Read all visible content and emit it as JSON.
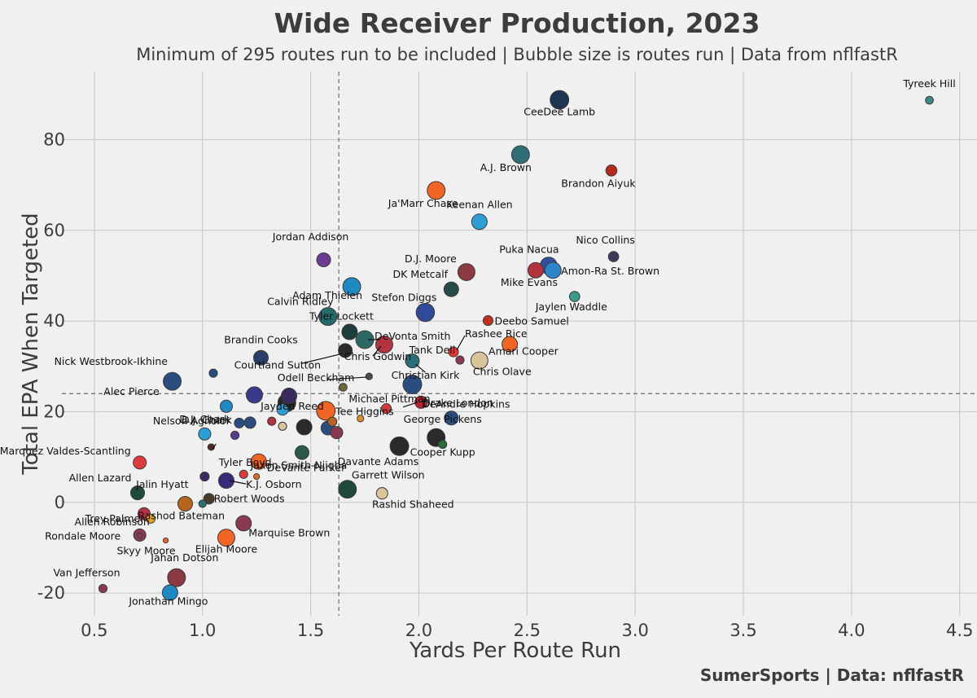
{
  "chart_data": {
    "type": "scatter",
    "title": "Wide Receiver Production, 2023",
    "subtitle": "Minimum of 295 routes run to be included | Bubble size is routes run | Data from nflfastR",
    "xlabel": "Yards Per Route Run",
    "ylabel": "Total EPA When Targeted",
    "credit": "SumerSports | Data: nflfastR",
    "xlim": [
      0.35,
      4.58
    ],
    "ylim": [
      -25,
      95
    ],
    "x_ticks": [
      0.5,
      1.0,
      1.5,
      2.0,
      2.5,
      3.0,
      3.5,
      4.0,
      4.5
    ],
    "x_tick_labels": [
      "0.5",
      "1.0",
      "1.5",
      "2.0",
      "2.5",
      "3.0",
      "3.5",
      "4.0",
      "4.5"
    ],
    "y_ticks": [
      -20,
      0,
      20,
      40,
      60,
      80
    ],
    "y_tick_labels": [
      "-20",
      "0",
      "20",
      "40",
      "60",
      "80"
    ],
    "grid": true,
    "reference_lines": {
      "x": 1.63,
      "y": 24
    },
    "points": [
      {
        "label": "Tyreek Hill",
        "x": 4.36,
        "y": 88.7,
        "routes": 370,
        "color": "#3b8a85"
      },
      {
        "label": "CeeDee Lamb",
        "x": 2.65,
        "y": 88.8,
        "routes": 640,
        "color": "#1e3550"
      },
      {
        "label": "A.J. Brown",
        "x": 2.47,
        "y": 76.7,
        "routes": 620,
        "color": "#2f6e76"
      },
      {
        "label": "Brandon Aiyuk",
        "x": 2.89,
        "y": 73.2,
        "routes": 450,
        "color": "#b5291f"
      },
      {
        "label": "Ja'Marr Chase",
        "x": 2.08,
        "y": 68.8,
        "routes": 620,
        "color": "#f26522"
      },
      {
        "label": "Keenan Allen",
        "x": 2.28,
        "y": 61.9,
        "routes": 560,
        "color": "#2b9fd6"
      },
      {
        "label": "Nico Collins",
        "x": 2.9,
        "y": 54.2,
        "routes": 430,
        "color": "#3b3a5e"
      },
      {
        "label": "Puka Nacua",
        "x": 2.6,
        "y": 52.2,
        "routes": 600,
        "color": "#2f4f9a"
      },
      {
        "label": "Amon-Ra St. Brown",
        "x": 2.62,
        "y": 51.2,
        "routes": 580,
        "color": "#2a86c9"
      },
      {
        "label": "Mike Evans",
        "x": 2.54,
        "y": 51.2,
        "routes": 560,
        "color": "#b3323d"
      },
      {
        "label": "D.J. Moore",
        "x": 2.22,
        "y": 50.8,
        "routes": 600,
        "color": "#8a3a40"
      },
      {
        "label": "Jordan Addison",
        "x": 1.56,
        "y": 53.5,
        "routes": 520,
        "color": "#6b3d91"
      },
      {
        "label": "Adam Thielen",
        "x": 1.69,
        "y": 47.6,
        "routes": 620,
        "color": "#1f8ac2"
      },
      {
        "label": "DK Metcalf",
        "x": 2.15,
        "y": 47.0,
        "routes": 540,
        "color": "#254b47"
      },
      {
        "label": "Jaylen Waddle",
        "x": 2.72,
        "y": 45.4,
        "routes": 430,
        "color": "#3b9a8a"
      },
      {
        "label": "Stefon Diggs",
        "x": 2.03,
        "y": 41.9,
        "routes": 630,
        "color": "#2f4a9a"
      },
      {
        "label": "Calvin Ridley",
        "x": 1.58,
        "y": 41.0,
        "routes": 620,
        "color": "#236b6b"
      },
      {
        "label": "Deebo Samuel",
        "x": 2.32,
        "y": 40.1,
        "routes": 420,
        "color": "#c0301f"
      },
      {
        "label": "Tyler Lockett",
        "x": 1.68,
        "y": 37.6,
        "routes": 560,
        "color": "#1d3e3a"
      },
      {
        "label": "DeVonta Smith",
        "x": 1.75,
        "y": 35.9,
        "routes": 620,
        "color": "#2e6866"
      },
      {
        "label": "Chris Godwin",
        "x": 1.84,
        "y": 34.8,
        "routes": 600,
        "color": "#b33340"
      },
      {
        "label": "Rashee Rice",
        "x": 2.16,
        "y": 33.2,
        "routes": 420,
        "color": "#e03a2f"
      },
      {
        "label": "Amari Cooper",
        "x": 2.42,
        "y": 34.9,
        "routes": 560,
        "color": "#f26522"
      },
      {
        "label": "Courtland Sutton",
        "x": 1.66,
        "y": 33.5,
        "routes": 520,
        "color": "#2a2a2a"
      },
      {
        "label": "Brandin Cooks",
        "x": 1.27,
        "y": 31.9,
        "routes": 540,
        "color": "#2a3f66"
      },
      {
        "label": "Tank Dell",
        "x": 2.19,
        "y": 31.4,
        "routes": 380,
        "color": "#8a3a50"
      },
      {
        "label": "Chris Olave",
        "x": 2.28,
        "y": 31.3,
        "routes": 600,
        "color": "#d9c39a"
      },
      {
        "label": "Christian Kirk",
        "x": 1.97,
        "y": 31.2,
        "routes": 520,
        "color": "#2a6e7a"
      },
      {
        "label": "Nick Westbrook-Ikhine",
        "x": 1.05,
        "y": 28.5,
        "routes": 380,
        "color": "#2a4d80"
      },
      {
        "label": "Odell Beckham",
        "x": 1.77,
        "y": 27.8,
        "routes": 340,
        "color": "#4a4a4a"
      },
      {
        "label": "Alec Pierce",
        "x": 0.86,
        "y": 26.7,
        "routes": 620,
        "color": "#2a4d80"
      },
      {
        "label": "Michael Pittman",
        "x": 1.97,
        "y": 26.0,
        "routes": 640,
        "color": "#2a4d80"
      },
      {
        "label": "",
        "x": 1.65,
        "y": 25.4,
        "routes": 370,
        "color": "#6b6b3a"
      },
      {
        "label": "",
        "x": 1.24,
        "y": 23.7,
        "routes": 580,
        "color": "#3a3a8a"
      },
      {
        "label": "Jayden Reed",
        "x": 1.4,
        "y": 23.5,
        "routes": 560,
        "color": "#3a2a5e"
      },
      {
        "label": "",
        "x": 1.39,
        "y": 22.0,
        "routes": 620,
        "color": "#2a2a2a"
      },
      {
        "label": "Drake London",
        "x": 2.01,
        "y": 22.1,
        "routes": 480,
        "color": "#c0202f"
      },
      {
        "label": "D.J. Chark",
        "x": 1.11,
        "y": 21.2,
        "routes": 480,
        "color": "#1f8ac2"
      },
      {
        "label": "Tee Higgins",
        "x": 1.57,
        "y": 20.2,
        "routes": 640,
        "color": "#f26522"
      },
      {
        "label": "",
        "x": 1.37,
        "y": 20.5,
        "routes": 460,
        "color": "#2a9fd6"
      },
      {
        "label": "",
        "x": 1.85,
        "y": 20.7,
        "routes": 420,
        "color": "#d43a3a"
      },
      {
        "label": "DeAndre Hopkins",
        "x": 2.15,
        "y": 18.6,
        "routes": 520,
        "color": "#2a4d80"
      },
      {
        "label": "",
        "x": 1.73,
        "y": 18.5,
        "routes": 340,
        "color": "#e08a2a"
      },
      {
        "label": "",
        "x": 1.6,
        "y": 17.8,
        "routes": 400,
        "color": "#b5651d"
      },
      {
        "label": "",
        "x": 1.32,
        "y": 17.9,
        "routes": 380,
        "color": "#b33340"
      },
      {
        "label": "",
        "x": 1.17,
        "y": 17.5,
        "routes": 420,
        "color": "#2a4d80"
      },
      {
        "label": "",
        "x": 1.22,
        "y": 17.6,
        "routes": 460,
        "color": "#2a4d80"
      },
      {
        "label": "",
        "x": 1.47,
        "y": 16.6,
        "routes": 560,
        "color": "#2a2a2a"
      },
      {
        "label": "",
        "x": 1.37,
        "y": 16.8,
        "routes": 380,
        "color": "#d9c39a"
      },
      {
        "label": "",
        "x": 1.58,
        "y": 16.4,
        "routes": 520,
        "color": "#2a4d80"
      },
      {
        "label": "",
        "x": 1.62,
        "y": 15.4,
        "routes": 480,
        "color": "#8a3a50"
      },
      {
        "label": "D.J. Chark",
        "x": 1.01,
        "y": 15.1,
        "routes": 480,
        "color": "#2a9fd6"
      },
      {
        "label": "",
        "x": 1.15,
        "y": 14.8,
        "routes": 380,
        "color": "#5a3a8a"
      },
      {
        "label": "George Pickens",
        "x": 2.08,
        "y": 14.3,
        "routes": 620,
        "color": "#2a2a2a"
      },
      {
        "label": "Cooper Kupp",
        "x": 2.11,
        "y": 12.8,
        "routes": 380,
        "color": "#2a6e3a"
      },
      {
        "label": "Davante Adams",
        "x": 1.91,
        "y": 12.4,
        "routes": 640,
        "color": "#2a2a2a"
      },
      {
        "label": "Nelson Agholor",
        "x": 1.04,
        "y": 12.2,
        "routes": 340,
        "color": "#4a2a2a"
      },
      {
        "label": "Jaxon Smith-Njigba",
        "x": 1.46,
        "y": 11.0,
        "routes": 520,
        "color": "#2a5a4a"
      },
      {
        "label": "Marquez Valdes-Scantling",
        "x": 0.71,
        "y": 8.8,
        "routes": 500,
        "color": "#e03a3a"
      },
      {
        "label": "DeVante Parker",
        "x": 1.26,
        "y": 9.0,
        "routes": 560,
        "color": "#f26522"
      },
      {
        "label": "",
        "x": 1.19,
        "y": 6.2,
        "routes": 380,
        "color": "#e03a3a"
      },
      {
        "label": "Jalin Hyatt",
        "x": 1.01,
        "y": 5.7,
        "routes": 400,
        "color": "#3a2a5e"
      },
      {
        "label": "Tyler Boyd",
        "x": 1.25,
        "y": 5.7,
        "routes": 320,
        "color": "#e06a2a"
      },
      {
        "label": "K.J. Osborn",
        "x": 1.11,
        "y": 4.8,
        "routes": 560,
        "color": "#3a2a7a"
      },
      {
        "label": "Garrett Wilson",
        "x": 1.67,
        "y": 2.9,
        "routes": 620,
        "color": "#1d4a3a"
      },
      {
        "label": "Rashid Shaheed",
        "x": 1.83,
        "y": 2.0,
        "routes": 460,
        "color": "#d9c39a"
      },
      {
        "label": "Allen Lazard",
        "x": 0.7,
        "y": 2.1,
        "routes": 520,
        "color": "#1d4a3a"
      },
      {
        "label": "Robert Woods",
        "x": 1.03,
        "y": 0.8,
        "routes": 440,
        "color": "#4a3a2a"
      },
      {
        "label": "",
        "x": 0.92,
        "y": -0.3,
        "routes": 540,
        "color": "#b5651d"
      },
      {
        "label": "Rashod Bateman",
        "x": 1.0,
        "y": -0.3,
        "routes": 360,
        "color": "#2a6e7a"
      },
      {
        "label": "Trey Palmer",
        "x": 0.73,
        "y": -2.5,
        "routes": 480,
        "color": "#b33340"
      },
      {
        "label": "",
        "x": 0.76,
        "y": -3.6,
        "routes": 400,
        "color": "#e0a02a"
      },
      {
        "label": "Marquise Brown",
        "x": 1.19,
        "y": -4.6,
        "routes": 560,
        "color": "#8a3a50"
      },
      {
        "label": "Allen Robinson",
        "x": 0.71,
        "y": -7.2,
        "routes": 480,
        "color": "#8a3a50"
      },
      {
        "label": "Elijah Moore",
        "x": 1.11,
        "y": -7.8,
        "routes": 600,
        "color": "#f26522"
      },
      {
        "label": "Skyy Moore",
        "x": 0.83,
        "y": -8.4,
        "routes": 300,
        "color": "#f26522"
      },
      {
        "label": "Rondale Moore",
        "x": 0.71,
        "y": -7.3,
        "routes": 300,
        "color": "#8a3a50"
      },
      {
        "label": "Jahan Dotson",
        "x": 0.88,
        "y": -16.6,
        "routes": 620,
        "color": "#8a3a40"
      },
      {
        "label": "Van Jefferson",
        "x": 0.54,
        "y": -19.0,
        "routes": 380,
        "color": "#8a3a50"
      },
      {
        "label": "Jonathan Mingo",
        "x": 0.85,
        "y": -19.9,
        "routes": 560,
        "color": "#1f8ac2"
      }
    ]
  }
}
